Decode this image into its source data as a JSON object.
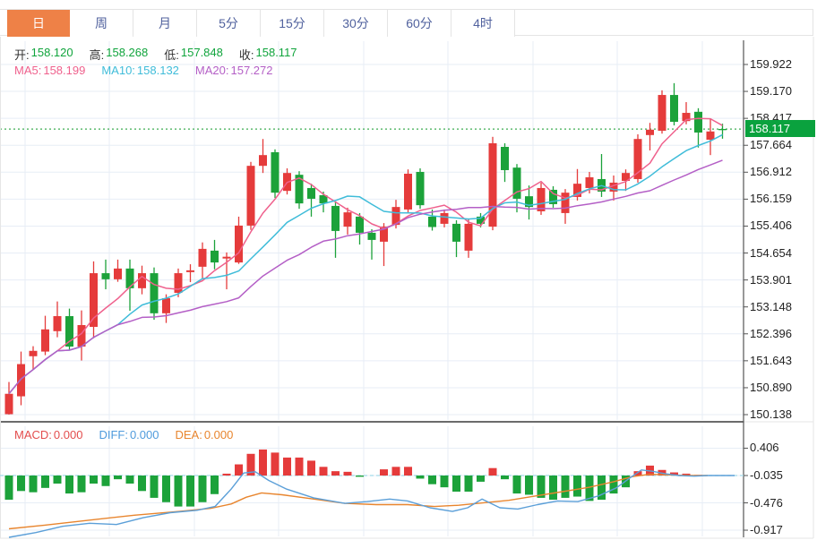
{
  "tab_bar": {
    "tabs": [
      {
        "key": "day",
        "label": "日",
        "active": true
      },
      {
        "key": "week",
        "label": "周",
        "active": false
      },
      {
        "key": "month",
        "label": "月",
        "active": false
      },
      {
        "key": "5min",
        "label": "5分",
        "active": false
      },
      {
        "key": "15min",
        "label": "15分",
        "active": false
      },
      {
        "key": "30min",
        "label": "30分",
        "active": false
      },
      {
        "key": "60min",
        "label": "60分",
        "active": false
      },
      {
        "key": "4hour",
        "label": "4时",
        "active": false
      }
    ]
  },
  "info_bar": {
    "items": [
      {
        "label": "开:",
        "value": "158.120"
      },
      {
        "label": "高:",
        "value": "158.268"
      },
      {
        "label": "低:",
        "value": "157.848"
      },
      {
        "label": "收:",
        "value": "158.117"
      }
    ],
    "label_color": "#333333",
    "value_color": "#10a43c"
  },
  "ma_bar": {
    "items": [
      {
        "label": "MA5:",
        "value": "158.199",
        "color": "#ef618d"
      },
      {
        "label": "MA10:",
        "value": "158.132",
        "color": "#3fbcd9"
      },
      {
        "label": "MA20:",
        "value": "157.272",
        "color": "#b45fc6"
      }
    ]
  },
  "macd_bar": {
    "items": [
      {
        "label": "MACD:",
        "value": "0.000",
        "color": "#e34d4d"
      },
      {
        "label": "DIFF:",
        "value": "0.000",
        "color": "#4f9bdc"
      },
      {
        "label": "DEA:",
        "value": "0.000",
        "color": "#e8852e"
      }
    ]
  },
  "colors": {
    "up": "#e53b3b",
    "down": "#1ca23a",
    "ma5": "#ef618d",
    "ma10": "#3fbcd9",
    "ma20": "#b45fc6",
    "diff_line": "#5b9fd8",
    "dea_line": "#e8852e",
    "current_line": "#3fae52",
    "current_badge_bg": "#0aa23e",
    "tab_active_bg": "#ee8147",
    "grid": "#e7edf6",
    "axis_line": "#555555",
    "zero_dash": "#a5d9ea",
    "frame": "#e6e6e6",
    "divider": "#3a3a3a"
  },
  "chart_data": {
    "type": "candlestick",
    "convention": "CN convention: red = up candle, green = down candle",
    "x_labels_visible": false,
    "price_panel": {
      "ylim": [
        150.138,
        159.922
      ],
      "tick_labels": [
        "159.922",
        "159.170",
        "158.417",
        "157.664",
        "156.912",
        "156.159",
        "155.406",
        "154.654",
        "153.901",
        "153.148",
        "152.396",
        "151.643",
        "150.890",
        "150.138"
      ],
      "current_price": 158.117,
      "current_label": "158.117",
      "moving_averages": [
        {
          "name": "MA5",
          "period": 5,
          "last": 158.199
        },
        {
          "name": "MA10",
          "period": 10,
          "last": 158.132
        },
        {
          "name": "MA20",
          "period": 20,
          "last": 157.272
        }
      ],
      "candles": [
        [
          150.15,
          151.05,
          150.14,
          150.72
        ],
        [
          150.65,
          151.9,
          150.4,
          151.55
        ],
        [
          151.77,
          152.05,
          151.4,
          151.92
        ],
        [
          151.9,
          152.9,
          151.8,
          152.52
        ],
        [
          152.47,
          153.3,
          152.3,
          152.89
        ],
        [
          152.89,
          153.1,
          151.95,
          152.04
        ],
        [
          152.04,
          153.05,
          151.65,
          152.64
        ],
        [
          152.59,
          154.42,
          152.27,
          154.09
        ],
        [
          154.09,
          154.47,
          153.64,
          153.92
        ],
        [
          153.92,
          154.47,
          153.85,
          154.22
        ],
        [
          154.22,
          154.47,
          153.04,
          153.67
        ],
        [
          153.67,
          154.3,
          153.5,
          154.09
        ],
        [
          154.09,
          154.25,
          152.79,
          152.97
        ],
        [
          152.97,
          153.5,
          152.7,
          153.39
        ],
        [
          153.54,
          154.22,
          153.42,
          154.09
        ],
        [
          154.12,
          154.34,
          153.84,
          154.17
        ],
        [
          154.27,
          154.95,
          153.95,
          154.77
        ],
        [
          154.72,
          155.02,
          154.2,
          154.39
        ],
        [
          154.5,
          154.67,
          153.64,
          154.55
        ],
        [
          154.39,
          155.67,
          154.35,
          155.42
        ],
        [
          155.42,
          157.2,
          155.3,
          157.09
        ],
        [
          157.09,
          157.84,
          156.89,
          157.39
        ],
        [
          157.47,
          157.55,
          156.19,
          156.34
        ],
        [
          156.39,
          157.02,
          156.29,
          156.89
        ],
        [
          156.84,
          156.94,
          155.89,
          156.04
        ],
        [
          156.47,
          156.59,
          155.67,
          156.17
        ],
        [
          156.27,
          156.37,
          155.79,
          156.04
        ],
        [
          155.97,
          156.07,
          154.52,
          155.27
        ],
        [
          155.39,
          155.92,
          155.17,
          155.79
        ],
        [
          155.67,
          155.77,
          154.89,
          155.22
        ],
        [
          155.22,
          155.32,
          154.47,
          155.02
        ],
        [
          154.97,
          155.49,
          154.29,
          155.39
        ],
        [
          155.44,
          156.14,
          155.34,
          155.94
        ],
        [
          155.87,
          156.99,
          155.77,
          156.87
        ],
        [
          156.92,
          157.02,
          155.89,
          155.99
        ],
        [
          155.67,
          155.87,
          155.28,
          155.38
        ],
        [
          155.47,
          155.87,
          155.37,
          155.77
        ],
        [
          155.47,
          155.57,
          154.54,
          154.97
        ],
        [
          154.72,
          155.62,
          154.52,
          155.47
        ],
        [
          155.67,
          155.77,
          155.37,
          155.47
        ],
        [
          155.39,
          157.9,
          155.29,
          157.72
        ],
        [
          157.62,
          157.72,
          156.64,
          156.97
        ],
        [
          157.04,
          157.14,
          155.79,
          156.17
        ],
        [
          156.24,
          156.54,
          155.59,
          155.94
        ],
        [
          155.82,
          156.62,
          155.72,
          156.47
        ],
        [
          156.42,
          156.52,
          155.92,
          156.02
        ],
        [
          155.77,
          156.44,
          155.47,
          156.34
        ],
        [
          156.22,
          157.0,
          156.12,
          156.59
        ],
        [
          156.47,
          156.92,
          156.32,
          156.77
        ],
        [
          156.72,
          157.42,
          156.22,
          156.37
        ],
        [
          156.37,
          156.82,
          156.12,
          156.62
        ],
        [
          156.67,
          156.99,
          156.39,
          156.89
        ],
        [
          156.72,
          157.97,
          156.62,
          157.84
        ],
        [
          157.95,
          158.29,
          157.52,
          158.1
        ],
        [
          158.07,
          159.2,
          157.99,
          159.07
        ],
        [
          159.07,
          159.4,
          158.22,
          158.32
        ],
        [
          158.34,
          158.87,
          158.25,
          158.57
        ],
        [
          158.6,
          158.7,
          157.6,
          158.02
        ],
        [
          157.82,
          158.42,
          157.39,
          158.05
        ],
        [
          158.12,
          158.268,
          157.848,
          158.117
        ]
      ]
    },
    "macd_panel": {
      "tick_labels": [
        "0.406",
        "-0.035",
        "-0.476",
        "-0.917"
      ],
      "last": {
        "macd": 0.0,
        "diff": 0.0,
        "dea": 0.0
      },
      "histogram": [
        -0.39,
        -0.25,
        -0.27,
        -0.2,
        -0.13,
        -0.29,
        -0.27,
        -0.13,
        -0.17,
        -0.06,
        -0.13,
        -0.25,
        -0.36,
        -0.43,
        -0.5,
        -0.5,
        -0.43,
        -0.3,
        0.03,
        0.18,
        0.35,
        0.42,
        0.37,
        0.29,
        0.29,
        0.24,
        0.14,
        0.07,
        0.06,
        -0.02,
        0.0,
        0.1,
        0.14,
        0.14,
        -0.05,
        -0.14,
        -0.19,
        -0.26,
        -0.26,
        -0.1,
        0.12,
        -0.06,
        -0.29,
        -0.31,
        -0.36,
        -0.39,
        -0.36,
        -0.34,
        -0.41,
        -0.39,
        -0.29,
        -0.19,
        0.07,
        0.16,
        0.09,
        0.05,
        0.03,
        0.01,
        0.0,
        0.0
      ],
      "diff_points": [
        [
          10,
          -1.02
        ],
        [
          40,
          -0.92
        ],
        [
          70,
          -0.82
        ],
        [
          100,
          -0.77
        ],
        [
          130,
          -0.79
        ],
        [
          160,
          -0.68
        ],
        [
          190,
          -0.6
        ],
        [
          220,
          -0.56
        ],
        [
          240,
          -0.5
        ],
        [
          258,
          -0.22
        ],
        [
          272,
          0.04
        ],
        [
          285,
          0.06
        ],
        [
          300,
          -0.08
        ],
        [
          320,
          -0.22
        ],
        [
          350,
          -0.36
        ],
        [
          385,
          -0.45
        ],
        [
          410,
          -0.42
        ],
        [
          435,
          -0.38
        ],
        [
          455,
          -0.41
        ],
        [
          480,
          -0.52
        ],
        [
          505,
          -0.58
        ],
        [
          522,
          -0.52
        ],
        [
          538,
          -0.38
        ],
        [
          558,
          -0.52
        ],
        [
          578,
          -0.54
        ],
        [
          600,
          -0.47
        ],
        [
          622,
          -0.41
        ],
        [
          645,
          -0.42
        ],
        [
          668,
          -0.33
        ],
        [
          688,
          -0.2
        ],
        [
          703,
          -0.04
        ],
        [
          716,
          0.09
        ],
        [
          728,
          0.07
        ],
        [
          742,
          0.03
        ],
        [
          758,
          0.0
        ],
        [
          775,
          -0.01
        ],
        [
          790,
          0.0
        ],
        [
          820,
          0.0
        ]
      ],
      "dea_points": [
        [
          10,
          -0.86
        ],
        [
          50,
          -0.8
        ],
        [
          100,
          -0.72
        ],
        [
          150,
          -0.64
        ],
        [
          200,
          -0.58
        ],
        [
          235,
          -0.53
        ],
        [
          258,
          -0.46
        ],
        [
          275,
          -0.35
        ],
        [
          292,
          -0.28
        ],
        [
          315,
          -0.31
        ],
        [
          345,
          -0.37
        ],
        [
          385,
          -0.45
        ],
        [
          420,
          -0.47
        ],
        [
          455,
          -0.47
        ],
        [
          485,
          -0.5
        ],
        [
          512,
          -0.48
        ],
        [
          540,
          -0.44
        ],
        [
          568,
          -0.4
        ],
        [
          598,
          -0.33
        ],
        [
          628,
          -0.26
        ],
        [
          658,
          -0.19
        ],
        [
          685,
          -0.1
        ],
        [
          705,
          -0.02
        ],
        [
          725,
          0.02
        ],
        [
          748,
          0.01
        ],
        [
          770,
          0.0
        ],
        [
          790,
          0.0
        ]
      ]
    }
  }
}
